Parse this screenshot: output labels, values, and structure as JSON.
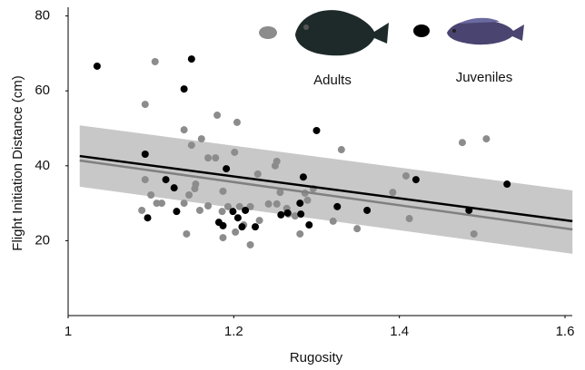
{
  "chart_data": {
    "type": "scatter",
    "xlabel": "Rugosity",
    "ylabel": "Flight Initiation Distance (cm)",
    "xlim": [
      1,
      1.6
    ],
    "ylim": [
      0,
      80
    ],
    "xticks": [
      1,
      1.2,
      1.4,
      1.6
    ],
    "yticks": [
      20,
      40,
      60,
      80
    ],
    "band": {
      "color": "#c8c8c8",
      "x": [
        1.014,
        1.609
      ],
      "upper": [
        50.8,
        33.4
      ],
      "lower": [
        34.4,
        16.5
      ]
    },
    "series": [
      {
        "name": "Adults",
        "color": "#8c8c8c",
        "fit_color": "#808080",
        "x": [
          1.105,
          1.093,
          1.14,
          1.149,
          1.161,
          1.18,
          1.204,
          1.169,
          1.178,
          1.201,
          1.25,
          1.252,
          1.33,
          1.476,
          1.505,
          1.408,
          1.392,
          1.093,
          1.1,
          1.107,
          1.113,
          1.089,
          1.146,
          1.154,
          1.153,
          1.14,
          1.159,
          1.143,
          1.169,
          1.186,
          1.187,
          1.193,
          1.187,
          1.202,
          1.22,
          1.212,
          1.22,
          1.242,
          1.231,
          1.256,
          1.264,
          1.252,
          1.266,
          1.274,
          1.28,
          1.286,
          1.289,
          1.296,
          1.32,
          1.349,
          1.412,
          1.49,
          1.229,
          1.207
        ],
        "values": [
          67.8,
          56.4,
          49.6,
          45.5,
          47.2,
          53.5,
          51.6,
          42.1,
          42.1,
          43.6,
          40.0,
          41.2,
          44.3,
          46.2,
          47.2,
          37.3,
          32.9,
          36.3,
          32.2,
          30.0,
          30.0,
          28.1,
          32.2,
          35.1,
          33.9,
          30.0,
          28.1,
          21.8,
          29.3,
          27.8,
          33.2,
          29.1,
          20.8,
          22.3,
          29.1,
          24.2,
          18.9,
          29.8,
          25.4,
          32.9,
          28.6,
          29.8,
          27.1,
          26.6,
          21.8,
          32.7,
          30.8,
          33.9,
          25.2,
          23.2,
          25.9,
          21.8,
          37.8,
          29.1
        ],
        "fit": {
          "x": [
            1.014,
            1.609
          ],
          "y": [
            41.4,
            23.0
          ]
        }
      },
      {
        "name": "Juveniles",
        "color": "#000000",
        "fit_color": "#000000",
        "x": [
          1.035,
          1.14,
          1.149,
          1.093,
          1.096,
          1.118,
          1.128,
          1.131,
          1.191,
          1.182,
          1.187,
          1.199,
          1.205,
          1.214,
          1.21,
          1.226,
          1.257,
          1.284,
          1.28,
          1.291,
          1.3,
          1.281,
          1.325,
          1.361,
          1.42,
          1.484,
          1.53,
          1.265
        ],
        "values": [
          66.6,
          60.5,
          68.5,
          43.1,
          26.1,
          36.3,
          34.1,
          27.8,
          39.2,
          24.9,
          24.0,
          27.8,
          26.1,
          28.1,
          23.7,
          23.7,
          26.9,
          37.0,
          30.0,
          24.2,
          49.4,
          27.1,
          29.1,
          28.1,
          36.3,
          28.1,
          35.1,
          27.4
        ],
        "fit": {
          "x": [
            1.014,
            1.609
          ],
          "y": [
            42.6,
            25.2
          ]
        }
      }
    ]
  }
}
